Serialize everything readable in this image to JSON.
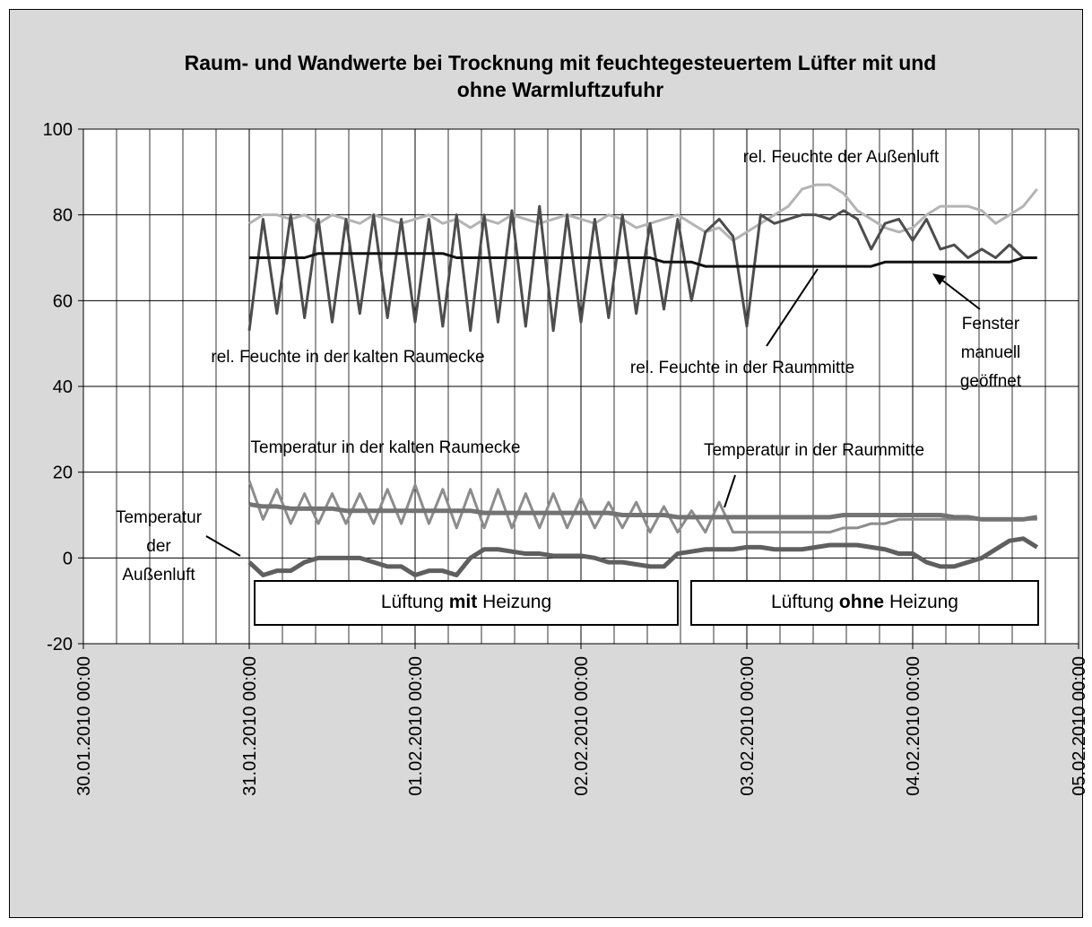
{
  "chart_data": {
    "type": "line",
    "title": "Raum- und Wandwerte bei Trocknung mit feuchtegesteuertem Lüfter mit und ohne Warmluftzufuhr",
    "x": [
      "31.01.2010 00:00",
      "31.01.2010 02:00",
      "31.01.2010 04:00",
      "31.01.2010 06:00",
      "31.01.2010 08:00",
      "31.01.2010 10:00",
      "31.01.2010 12:00",
      "31.01.2010 14:00",
      "31.01.2010 16:00",
      "31.01.2010 18:00",
      "31.01.2010 20:00",
      "31.01.2010 22:00",
      "01.02.2010 00:00",
      "01.02.2010 02:00",
      "01.02.2010 04:00",
      "01.02.2010 06:00",
      "01.02.2010 08:00",
      "01.02.2010 10:00",
      "01.02.2010 12:00",
      "01.02.2010 14:00",
      "01.02.2010 16:00",
      "01.02.2010 18:00",
      "01.02.2010 20:00",
      "01.02.2010 22:00",
      "02.02.2010 00:00",
      "02.02.2010 02:00",
      "02.02.2010 04:00",
      "02.02.2010 06:00",
      "02.02.2010 08:00",
      "02.02.2010 10:00",
      "02.02.2010 12:00",
      "02.02.2010 14:00",
      "02.02.2010 16:00",
      "02.02.2010 18:00",
      "02.02.2010 20:00",
      "02.02.2010 22:00",
      "03.02.2010 00:00",
      "03.02.2010 02:00",
      "03.02.2010 04:00",
      "03.02.2010 06:00",
      "03.02.2010 08:00",
      "03.02.2010 10:00",
      "03.02.2010 12:00",
      "03.02.2010 14:00",
      "03.02.2010 16:00",
      "03.02.2010 18:00",
      "03.02.2010 20:00",
      "03.02.2010 22:00",
      "04.02.2010 00:00",
      "04.02.2010 02:00",
      "04.02.2010 04:00",
      "04.02.2010 06:00",
      "04.02.2010 08:00",
      "04.02.2010 10:00",
      "04.02.2010 12:00",
      "04.02.2010 14:00",
      "04.02.2010 16:00",
      "04.02.2010 18:00"
    ],
    "series": [
      {
        "name": "rel. Feuchte der Außenluft",
        "color": "#b4b4b4",
        "line_width": 3,
        "values": [
          78,
          80,
          80,
          79,
          80,
          78,
          80,
          79,
          78,
          80,
          79,
          78,
          79,
          80,
          78,
          79,
          77,
          79,
          78,
          80,
          79,
          78,
          79,
          80,
          79,
          78,
          80,
          79,
          77,
          78,
          79,
          80,
          78,
          76,
          77,
          74,
          76,
          78,
          80,
          82,
          86,
          87,
          87,
          85,
          81,
          79,
          77,
          76,
          77,
          80,
          82,
          82,
          82,
          81,
          78,
          80,
          82,
          86
        ]
      },
      {
        "name": "rel. Feuchte in der kalten Raumecke",
        "color": "#4d4d4d",
        "line_width": 3,
        "values": [
          53,
          79,
          57,
          80,
          56,
          79,
          55,
          79,
          57,
          80,
          56,
          79,
          55,
          79,
          54,
          80,
          53,
          80,
          55,
          81,
          54,
          82,
          53,
          80,
          55,
          79,
          56,
          80,
          57,
          78,
          58,
          79,
          60,
          76,
          79,
          75,
          54,
          80,
          78,
          79,
          80,
          80,
          79,
          81,
          79,
          72,
          78,
          79,
          74,
          79,
          72,
          73,
          70,
          72,
          70,
          73,
          70,
          70
        ]
      },
      {
        "name": "rel. Feuchte in der Raummitte",
        "color": "#111111",
        "line_width": 3,
        "values": [
          70,
          70,
          70,
          70,
          70,
          71,
          71,
          71,
          71,
          71,
          71,
          71,
          71,
          71,
          71,
          70,
          70,
          70,
          70,
          70,
          70,
          70,
          70,
          70,
          70,
          70,
          70,
          70,
          70,
          70,
          69,
          69,
          69,
          68,
          68,
          68,
          68,
          68,
          68,
          68,
          68,
          68,
          68,
          68,
          68,
          68,
          69,
          69,
          69,
          69,
          69,
          69,
          69,
          69,
          69,
          69,
          70,
          70
        ]
      },
      {
        "name": "Temperatur in der kalten Raumecke",
        "color": "#8c8c8c",
        "line_width": 3,
        "values": [
          18,
          9,
          16,
          8,
          15,
          8,
          15,
          8,
          15,
          8,
          16,
          8,
          17,
          8,
          16,
          7,
          16,
          7,
          16,
          7,
          15,
          7,
          15,
          7,
          14,
          7,
          13,
          7,
          13,
          6,
          12,
          6,
          11,
          6,
          13,
          6,
          6,
          6,
          6,
          6,
          6,
          6,
          6,
          7,
          7,
          8,
          8,
          9,
          9,
          9,
          9,
          9,
          9,
          9,
          9,
          9,
          9,
          9
        ]
      },
      {
        "name": "Temperatur in der Raummitte",
        "color": "#737373",
        "line_width": 5,
        "values": [
          12.5,
          12,
          12,
          11.5,
          11.5,
          11.5,
          11.5,
          11,
          11,
          11,
          11,
          11,
          11,
          11,
          11,
          11,
          11,
          10.5,
          10.5,
          10.5,
          10.5,
          10.5,
          10.5,
          10.5,
          10.5,
          10.5,
          10.5,
          10,
          10,
          10,
          10,
          9.5,
          9.5,
          9.5,
          9.5,
          9.5,
          9.5,
          9.5,
          9.5,
          9.5,
          9.5,
          9.5,
          9.5,
          10,
          10,
          10,
          10,
          10,
          10,
          10,
          10,
          9.5,
          9.5,
          9,
          9,
          9,
          9,
          9.5
        ]
      },
      {
        "name": "Temperatur der Außenluft",
        "color": "#5f5f5f",
        "line_width": 5,
        "values": [
          -1,
          -4,
          -3,
          -3,
          -1,
          0,
          0,
          0,
          0,
          -1,
          -2,
          -2,
          -4,
          -3,
          -3,
          -4,
          0,
          2,
          2,
          1.5,
          1,
          1,
          0.5,
          0.5,
          0.5,
          0,
          -1,
          -1,
          -1.5,
          -2,
          -2,
          1,
          1.5,
          2,
          2,
          2,
          2.5,
          2.5,
          2,
          2,
          2,
          2.5,
          3,
          3,
          3,
          2.5,
          2,
          1,
          1,
          -1,
          -2,
          -2,
          -1,
          0,
          2,
          4,
          4.5,
          2.5
        ]
      }
    ],
    "xlim": [
      "30.01.2010 00:00",
      "05.02.2010 00:00"
    ],
    "xticks": [
      "30.01.2010 00:00",
      "31.01.2010 00:00",
      "01.02.2010 00:00",
      "02.02.2010 00:00",
      "03.02.2010 00:00",
      "04.02.2010 00:00",
      "05.02.2010 00:00"
    ],
    "x_minor_divisions": 5,
    "ylim": [
      -20,
      100
    ],
    "yticks": [
      -20,
      0,
      20,
      40,
      60,
      80,
      100
    ],
    "grid": true,
    "annotations": [
      "Fenster manuell geöffnet"
    ],
    "phases": [
      [
        "Lüftung",
        "mit",
        "Heizung"
      ],
      [
        "Lüftung",
        "ohne",
        "Heizung"
      ]
    ]
  }
}
